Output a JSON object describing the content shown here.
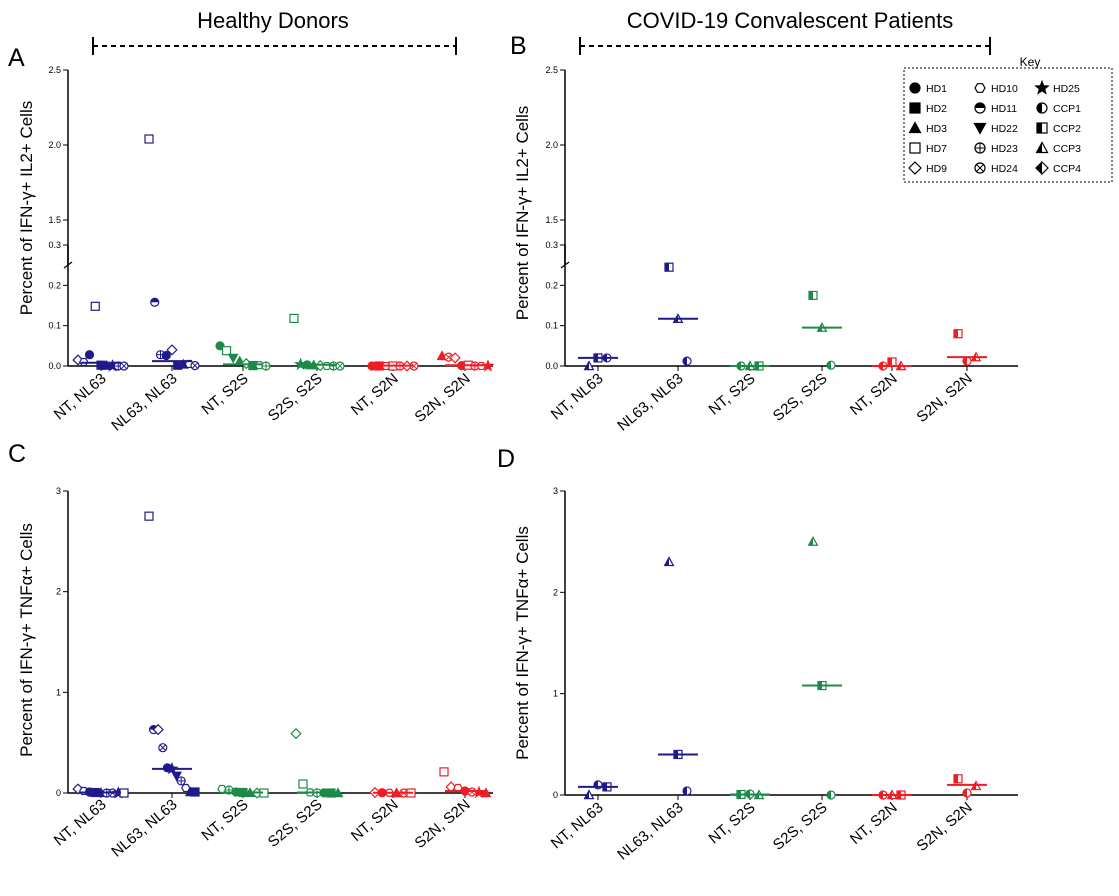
{
  "headers": {
    "left": "Healthy Donors",
    "right": "COVID-19 Convalescent Patients"
  },
  "key": {
    "title": "Key",
    "items": [
      {
        "label": "HD1",
        "shape": "circle",
        "fill": "solid"
      },
      {
        "label": "HD10",
        "shape": "hexagon",
        "fill": "open"
      },
      {
        "label": "HD25",
        "shape": "star",
        "fill": "solid"
      },
      {
        "label": "HD2",
        "shape": "square",
        "fill": "solid"
      },
      {
        "label": "HD11",
        "shape": "circle",
        "fill": "top-half"
      },
      {
        "label": "CCP1",
        "shape": "circle",
        "fill": "left-half"
      },
      {
        "label": "HD3",
        "shape": "triangle",
        "fill": "solid"
      },
      {
        "label": "HD22",
        "shape": "triangle-down",
        "fill": "solid"
      },
      {
        "label": "CCP2",
        "shape": "square",
        "fill": "left-half"
      },
      {
        "label": "HD7",
        "shape": "square",
        "fill": "open"
      },
      {
        "label": "HD23",
        "shape": "circle-plus",
        "fill": "open"
      },
      {
        "label": "CCP3",
        "shape": "triangle",
        "fill": "left-half"
      },
      {
        "label": "HD9",
        "shape": "diamond",
        "fill": "open"
      },
      {
        "label": "HD24",
        "shape": "circle-x",
        "fill": "open"
      },
      {
        "label": "CCP4",
        "shape": "diamond",
        "fill": "left-half"
      }
    ]
  },
  "colors": {
    "NL63": "#1f1a8a",
    "S2S": "#1e8a4a",
    "S2N": "#ee1c24"
  },
  "chart_data": [
    {
      "panel": "A",
      "type": "scatter",
      "ylabel": "Percent of IFN-γ+ IL2+ Cells",
      "categories": [
        "NT, NL63",
        "NL63, NL63",
        "NT, S2S",
        "S2S, S2S",
        "NT, S2N",
        "S2N, S2N"
      ],
      "broken_axis": true,
      "ylim": [
        0,
        2.5
      ],
      "segments": [
        [
          0,
          0.3
        ],
        [
          1.2,
          2.5
        ]
      ],
      "yticks_lower": [
        "0.0",
        "0.1",
        "0.2",
        "0.3"
      ],
      "yticks_upper": [
        "1.5",
        "2.0",
        "2.5"
      ],
      "medians": [
        0.008,
        0.012,
        0.004,
        0.003,
        0.001,
        0.002
      ],
      "points": [
        {
          "cat": 0,
          "donor": "HD9",
          "y": 0.015
        },
        {
          "cat": 0,
          "donor": "HD10",
          "y": 0.01
        },
        {
          "cat": 0,
          "donor": "HD1",
          "y": 0.028
        },
        {
          "cat": 0,
          "donor": "HD7",
          "y": 0.148
        },
        {
          "cat": 0,
          "donor": "HD2",
          "y": 0.002
        },
        {
          "cat": 0,
          "donor": "HD3",
          "y": 0.001
        },
        {
          "cat": 0,
          "donor": "HD25",
          "y": 0.0
        },
        {
          "cat": 0,
          "donor": "HD23",
          "y": 0.0
        },
        {
          "cat": 0,
          "donor": "HD24",
          "y": 0.0
        },
        {
          "cat": 1,
          "donor": "HD7",
          "y": 2.04
        },
        {
          "cat": 1,
          "donor": "HD11",
          "y": 0.158
        },
        {
          "cat": 1,
          "donor": "HD23",
          "y": 0.028
        },
        {
          "cat": 1,
          "donor": "HD1",
          "y": 0.026
        },
        {
          "cat": 1,
          "donor": "HD9",
          "y": 0.04
        },
        {
          "cat": 1,
          "donor": "HD2",
          "y": 0.002
        },
        {
          "cat": 1,
          "donor": "HD3",
          "y": 0.004
        },
        {
          "cat": 1,
          "donor": "HD10",
          "y": 0.005
        },
        {
          "cat": 1,
          "donor": "HD24",
          "y": 0.001
        },
        {
          "cat": 2,
          "donor": "HD1",
          "y": 0.05
        },
        {
          "cat": 2,
          "donor": "HD7",
          "y": 0.038
        },
        {
          "cat": 2,
          "donor": "HD22",
          "y": 0.02
        },
        {
          "cat": 2,
          "donor": "HD3",
          "y": 0.012
        },
        {
          "cat": 2,
          "donor": "HD9",
          "y": 0.006
        },
        {
          "cat": 2,
          "donor": "HD2",
          "y": 0.001
        },
        {
          "cat": 2,
          "donor": "HD10",
          "y": 0.002
        },
        {
          "cat": 2,
          "donor": "HD23",
          "y": 0.0
        },
        {
          "cat": 3,
          "donor": "HD7",
          "y": 0.118
        },
        {
          "cat": 3,
          "donor": "HD25",
          "y": 0.004
        },
        {
          "cat": 3,
          "donor": "HD1",
          "y": 0.003
        },
        {
          "cat": 3,
          "donor": "HD3",
          "y": 0.002
        },
        {
          "cat": 3,
          "donor": "HD9",
          "y": 0.001
        },
        {
          "cat": 3,
          "donor": "HD10",
          "y": 0.0
        },
        {
          "cat": 3,
          "donor": "HD23",
          "y": 0.0
        },
        {
          "cat": 3,
          "donor": "HD24",
          "y": 0.0
        },
        {
          "cat": 4,
          "donor": "HD1",
          "y": 0.0
        },
        {
          "cat": 4,
          "donor": "HD2",
          "y": 0.0
        },
        {
          "cat": 4,
          "donor": "HD10",
          "y": 0.0
        },
        {
          "cat": 4,
          "donor": "HD7",
          "y": 0.0
        },
        {
          "cat": 4,
          "donor": "HD23",
          "y": 0.0
        },
        {
          "cat": 4,
          "donor": "HD9",
          "y": 0.0
        },
        {
          "cat": 4,
          "donor": "HD24",
          "y": 0.0
        },
        {
          "cat": 5,
          "donor": "HD3",
          "y": 0.025
        },
        {
          "cat": 5,
          "donor": "HD24",
          "y": 0.022
        },
        {
          "cat": 5,
          "donor": "HD9",
          "y": 0.02
        },
        {
          "cat": 5,
          "donor": "HD1",
          "y": 0.001
        },
        {
          "cat": 5,
          "donor": "HD7",
          "y": 0.002
        },
        {
          "cat": 5,
          "donor": "HD23",
          "y": 0.0
        },
        {
          "cat": 5,
          "donor": "HD10",
          "y": 0.0
        },
        {
          "cat": 5,
          "donor": "HD25",
          "y": 0.0
        }
      ]
    },
    {
      "panel": "B",
      "type": "scatter",
      "ylabel": "Percent of IFN-γ+ IL2+ Cells",
      "categories": [
        "NT, NL63",
        "NL63, NL63",
        "NT, S2S",
        "S2S, S2S",
        "NT, S2N",
        "S2N, S2N"
      ],
      "broken_axis": true,
      "ylim": [
        0,
        2.5
      ],
      "segments": [
        [
          0,
          0.3
        ],
        [
          1.2,
          2.5
        ]
      ],
      "yticks_lower": [
        "0.0",
        "0.1",
        "0.2",
        "0.3"
      ],
      "yticks_upper": [
        "1.5",
        "2.0",
        "2.5"
      ],
      "medians": [
        0.02,
        0.117,
        0.0,
        0.095,
        0.0,
        0.022
      ],
      "points": [
        {
          "cat": 0,
          "donor": "CCP3",
          "y": 0.0
        },
        {
          "cat": 0,
          "donor": "CCP2",
          "y": 0.02
        },
        {
          "cat": 0,
          "donor": "CCP1",
          "y": 0.02
        },
        {
          "cat": 1,
          "donor": "CCP2",
          "y": 0.245
        },
        {
          "cat": 1,
          "donor": "CCP3",
          "y": 0.117
        },
        {
          "cat": 1,
          "donor": "CCP1",
          "y": 0.012
        },
        {
          "cat": 2,
          "donor": "CCP1",
          "y": 0.0
        },
        {
          "cat": 2,
          "donor": "CCP3",
          "y": 0.0
        },
        {
          "cat": 2,
          "donor": "CCP2",
          "y": 0.0
        },
        {
          "cat": 3,
          "donor": "CCP2",
          "y": 0.175
        },
        {
          "cat": 3,
          "donor": "CCP3",
          "y": 0.095
        },
        {
          "cat": 3,
          "donor": "CCP1",
          "y": 0.002
        },
        {
          "cat": 4,
          "donor": "CCP1",
          "y": 0.0
        },
        {
          "cat": 4,
          "donor": "CCP2",
          "y": 0.01
        },
        {
          "cat": 4,
          "donor": "CCP3",
          "y": 0.0
        },
        {
          "cat": 5,
          "donor": "CCP2",
          "y": 0.08
        },
        {
          "cat": 5,
          "donor": "CCP1",
          "y": 0.012
        },
        {
          "cat": 5,
          "donor": "CCP3",
          "y": 0.022
        }
      ]
    },
    {
      "panel": "C",
      "type": "scatter",
      "ylabel": "Percent of IFN-γ+ TNFα+ Cells",
      "categories": [
        "NT, NL63",
        "NL63, NL63",
        "NT, S2S",
        "S2S, S2S",
        "NT, S2N",
        "S2N, S2N"
      ],
      "broken_axis": false,
      "ylim": [
        0,
        3
      ],
      "yticks": [
        "0",
        "1",
        "2",
        "3"
      ],
      "medians": [
        0.005,
        0.24,
        0.005,
        0.005,
        0.002,
        0.02
      ],
      "points": [
        {
          "cat": 0,
          "donor": "HD9",
          "y": 0.04
        },
        {
          "cat": 0,
          "donor": "HD10",
          "y": 0.02
        },
        {
          "cat": 0,
          "donor": "HD1",
          "y": 0.01
        },
        {
          "cat": 0,
          "donor": "HD2",
          "y": 0.005
        },
        {
          "cat": 0,
          "donor": "HD3",
          "y": 0.002
        },
        {
          "cat": 0,
          "donor": "HD23",
          "y": 0.0
        },
        {
          "cat": 0,
          "donor": "HD24",
          "y": 0.0
        },
        {
          "cat": 0,
          "donor": "HD25",
          "y": 0.0
        },
        {
          "cat": 0,
          "donor": "HD7",
          "y": 0.0
        },
        {
          "cat": 1,
          "donor": "HD7",
          "y": 2.75
        },
        {
          "cat": 1,
          "donor": "HD11",
          "y": 0.63
        },
        {
          "cat": 1,
          "donor": "HD9",
          "y": 0.63
        },
        {
          "cat": 1,
          "donor": "HD24",
          "y": 0.45
        },
        {
          "cat": 1,
          "donor": "HD1",
          "y": 0.25
        },
        {
          "cat": 1,
          "donor": "HD25",
          "y": 0.24
        },
        {
          "cat": 1,
          "donor": "HD22",
          "y": 0.17
        },
        {
          "cat": 1,
          "donor": "HD23",
          "y": 0.12
        },
        {
          "cat": 1,
          "donor": "HD10",
          "y": 0.05
        },
        {
          "cat": 1,
          "donor": "HD3",
          "y": 0.01
        },
        {
          "cat": 1,
          "donor": "HD2",
          "y": 0.01
        },
        {
          "cat": 2,
          "donor": "HD10",
          "y": 0.04
        },
        {
          "cat": 2,
          "donor": "HD23",
          "y": 0.03
        },
        {
          "cat": 2,
          "donor": "HD1",
          "y": 0.01
        },
        {
          "cat": 2,
          "donor": "HD2",
          "y": 0.005
        },
        {
          "cat": 2,
          "donor": "HD3",
          "y": 0.002
        },
        {
          "cat": 2,
          "donor": "HD9",
          "y": 0.0
        },
        {
          "cat": 2,
          "donor": "HD7",
          "y": 0.0
        },
        {
          "cat": 3,
          "donor": "HD9",
          "y": 0.59
        },
        {
          "cat": 3,
          "donor": "HD7",
          "y": 0.09
        },
        {
          "cat": 3,
          "donor": "HD10",
          "y": 0.005
        },
        {
          "cat": 3,
          "donor": "HD23",
          "y": 0.002
        },
        {
          "cat": 3,
          "donor": "HD1",
          "y": 0.001
        },
        {
          "cat": 3,
          "donor": "HD2",
          "y": 0.0
        },
        {
          "cat": 3,
          "donor": "HD3",
          "y": 0.0
        },
        {
          "cat": 4,
          "donor": "HD9",
          "y": 0.005
        },
        {
          "cat": 4,
          "donor": "HD1",
          "y": 0.003
        },
        {
          "cat": 4,
          "donor": "HD10",
          "y": 0.002
        },
        {
          "cat": 4,
          "donor": "HD3",
          "y": 0.0
        },
        {
          "cat": 4,
          "donor": "HD24",
          "y": 0.0
        },
        {
          "cat": 4,
          "donor": "HD7",
          "y": 0.0
        },
        {
          "cat": 5,
          "donor": "HD7",
          "y": 0.21
        },
        {
          "cat": 5,
          "donor": "HD9",
          "y": 0.06
        },
        {
          "cat": 5,
          "donor": "HD10",
          "y": 0.05
        },
        {
          "cat": 5,
          "donor": "HD1",
          "y": 0.02
        },
        {
          "cat": 5,
          "donor": "HD24",
          "y": 0.01
        },
        {
          "cat": 5,
          "donor": "HD25",
          "y": 0.005
        },
        {
          "cat": 5,
          "donor": "HD3",
          "y": 0.0
        }
      ]
    },
    {
      "panel": "D",
      "type": "scatter",
      "ylabel": "Percent of IFN-γ+ TNFα+ Cells",
      "categories": [
        "NT, NL63",
        "NL63, NL63",
        "NT, S2S",
        "S2S, S2S",
        "NT, S2N",
        "S2N, S2N"
      ],
      "broken_axis": false,
      "ylim": [
        0,
        3
      ],
      "yticks": [
        "0",
        "1",
        "2",
        "3"
      ],
      "medians": [
        0.08,
        0.4,
        0.005,
        1.08,
        0.0,
        0.1
      ],
      "points": [
        {
          "cat": 0,
          "donor": "CCP3",
          "y": 0.0
        },
        {
          "cat": 0,
          "donor": "CCP1",
          "y": 0.1
        },
        {
          "cat": 0,
          "donor": "CCP2",
          "y": 0.08
        },
        {
          "cat": 1,
          "donor": "CCP3",
          "y": 2.3
        },
        {
          "cat": 1,
          "donor": "CCP2",
          "y": 0.4
        },
        {
          "cat": 1,
          "donor": "CCP1",
          "y": 0.04
        },
        {
          "cat": 2,
          "donor": "CCP2",
          "y": 0.005
        },
        {
          "cat": 2,
          "donor": "CCP1",
          "y": 0.01
        },
        {
          "cat": 2,
          "donor": "CCP3",
          "y": 0.0
        },
        {
          "cat": 3,
          "donor": "CCP3",
          "y": 2.5
        },
        {
          "cat": 3,
          "donor": "CCP2",
          "y": 1.08
        },
        {
          "cat": 3,
          "donor": "CCP1",
          "y": 0.0
        },
        {
          "cat": 4,
          "donor": "CCP1",
          "y": 0.0
        },
        {
          "cat": 4,
          "donor": "CCP3",
          "y": 0.0
        },
        {
          "cat": 4,
          "donor": "CCP2",
          "y": 0.0
        },
        {
          "cat": 5,
          "donor": "CCP2",
          "y": 0.16
        },
        {
          "cat": 5,
          "donor": "CCP1",
          "y": 0.02
        },
        {
          "cat": 5,
          "donor": "CCP3",
          "y": 0.09
        }
      ]
    }
  ]
}
